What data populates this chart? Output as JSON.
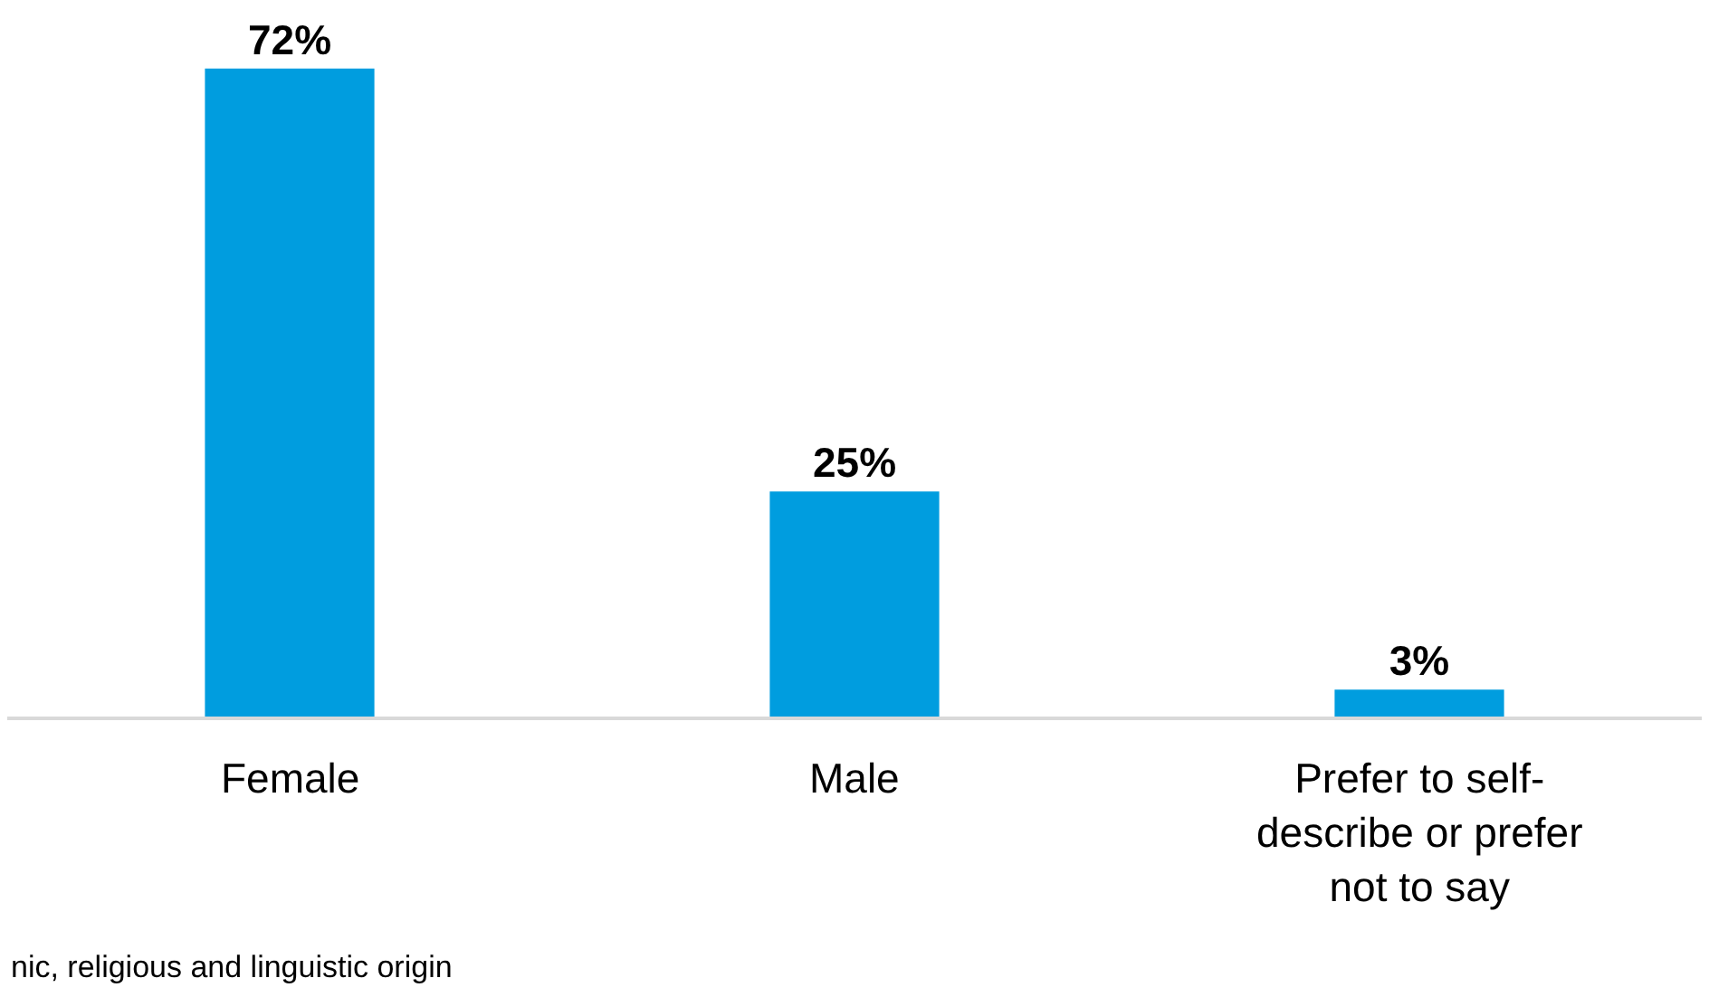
{
  "chart_data": {
    "type": "bar",
    "categories": [
      "Female",
      "Male",
      "Prefer to self-describe or prefer not to say"
    ],
    "values": [
      72,
      25,
      3
    ],
    "color": "#009ddf",
    "data_labels": true,
    "value_labels": [
      "72%",
      "25%",
      "3%"
    ],
    "grid": false,
    "annotations": [
      "nic, religious and linguistic origin"
    ]
  }
}
